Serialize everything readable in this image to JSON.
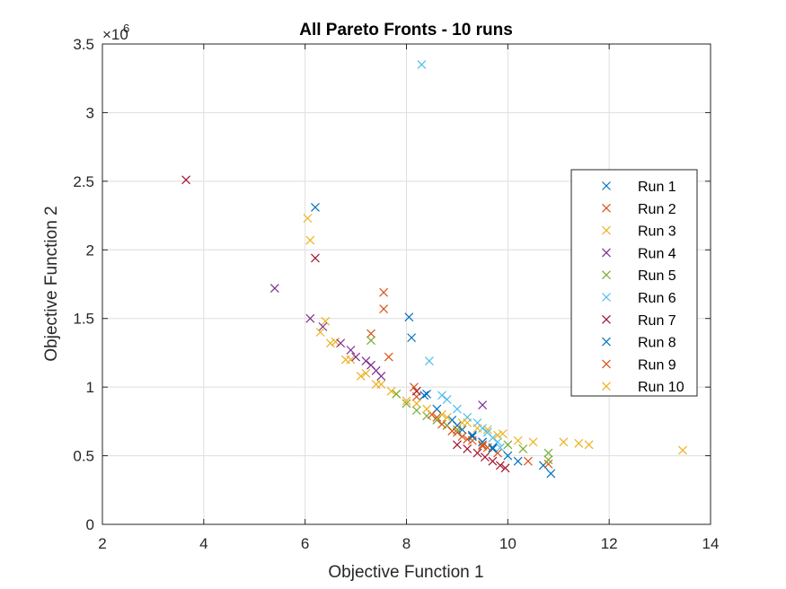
{
  "chart_data": {
    "type": "scatter",
    "title": "All Pareto Fronts - 10 runs",
    "xlabel": "Objective Function 1",
    "ylabel": "Objective Function 2",
    "xlim": [
      2,
      14
    ],
    "ylim": [
      0,
      3.5
    ],
    "y_exponent_label": "×10",
    "y_exponent_power": "6",
    "xticks": [
      "2",
      "4",
      "6",
      "8",
      "10",
      "12",
      "14"
    ],
    "yticks": [
      "0",
      "0.5",
      "1",
      "1.5",
      "2",
      "2.5",
      "3",
      "3.5"
    ],
    "grid": true,
    "legend_position": "east",
    "marker": "x",
    "series": [
      {
        "name": "Run 1",
        "color": "#0072BD",
        "points": [
          [
            6.2,
            2.31
          ],
          [
            8.05,
            1.51
          ],
          [
            8.1,
            1.36
          ],
          [
            8.4,
            0.95
          ],
          [
            9.0,
            0.72
          ],
          [
            9.3,
            0.65
          ],
          [
            9.5,
            0.6
          ],
          [
            9.7,
            0.55
          ],
          [
            10.2,
            0.46
          ],
          [
            10.7,
            0.43
          ],
          [
            10.85,
            0.37
          ]
        ]
      },
      {
        "name": "Run 2",
        "color": "#D95319",
        "points": [
          [
            7.55,
            1.69
          ],
          [
            7.55,
            1.57
          ],
          [
            7.3,
            1.39
          ],
          [
            7.65,
            1.22
          ],
          [
            8.2,
            0.93
          ],
          [
            8.6,
            0.78
          ],
          [
            8.8,
            0.72
          ],
          [
            9.0,
            0.67
          ],
          [
            9.2,
            0.62
          ],
          [
            9.5,
            0.57
          ],
          [
            9.8,
            0.52
          ],
          [
            10.4,
            0.46
          ],
          [
            10.8,
            0.44
          ]
        ]
      },
      {
        "name": "Run 3",
        "color": "#EDB120",
        "points": [
          [
            6.05,
            2.23
          ],
          [
            6.1,
            2.07
          ],
          [
            6.4,
            1.48
          ],
          [
            6.6,
            1.33
          ],
          [
            6.9,
            1.2
          ],
          [
            7.2,
            1.1
          ],
          [
            7.5,
            1.02
          ],
          [
            7.8,
            0.95
          ],
          [
            8.2,
            0.88
          ],
          [
            8.7,
            0.8
          ],
          [
            9.2,
            0.74
          ],
          [
            9.6,
            0.69
          ],
          [
            9.9,
            0.66
          ],
          [
            10.2,
            0.61
          ],
          [
            10.5,
            0.6
          ],
          [
            11.1,
            0.6
          ],
          [
            11.4,
            0.59
          ],
          [
            11.6,
            0.58
          ],
          [
            13.45,
            0.54
          ]
        ]
      },
      {
        "name": "Run 4",
        "color": "#7E2F8E",
        "points": [
          [
            5.4,
            1.72
          ],
          [
            6.1,
            1.5
          ],
          [
            6.35,
            1.44
          ],
          [
            6.7,
            1.32
          ],
          [
            6.9,
            1.27
          ],
          [
            7.0,
            1.22
          ],
          [
            7.2,
            1.19
          ],
          [
            7.3,
            1.16
          ],
          [
            7.4,
            1.12
          ],
          [
            7.5,
            1.08
          ],
          [
            9.5,
            0.87
          ]
        ]
      },
      {
        "name": "Run 5",
        "color": "#77AC30",
        "points": [
          [
            7.3,
            1.34
          ],
          [
            7.8,
            0.95
          ],
          [
            8.0,
            0.88
          ],
          [
            8.2,
            0.83
          ],
          [
            8.4,
            0.79
          ],
          [
            8.6,
            0.76
          ],
          [
            8.8,
            0.72
          ],
          [
            9.0,
            0.69
          ],
          [
            10.0,
            0.58
          ],
          [
            10.3,
            0.55
          ],
          [
            10.8,
            0.52
          ],
          [
            10.8,
            0.47
          ]
        ]
      },
      {
        "name": "Run 6",
        "color": "#4DBEEE",
        "points": [
          [
            8.3,
            3.35
          ],
          [
            8.45,
            1.19
          ],
          [
            8.7,
            0.94
          ],
          [
            8.8,
            0.91
          ],
          [
            9.0,
            0.84
          ],
          [
            9.2,
            0.78
          ],
          [
            9.4,
            0.74
          ],
          [
            9.5,
            0.7
          ],
          [
            9.6,
            0.67
          ],
          [
            9.7,
            0.63
          ],
          [
            9.8,
            0.6
          ],
          [
            9.85,
            0.56
          ]
        ]
      },
      {
        "name": "Run 7",
        "color": "#A2142F",
        "points": [
          [
            3.65,
            2.51
          ],
          [
            6.2,
            1.94
          ],
          [
            8.2,
            0.97
          ],
          [
            9.0,
            0.58
          ],
          [
            9.2,
            0.55
          ],
          [
            9.4,
            0.52
          ],
          [
            9.55,
            0.49
          ],
          [
            9.7,
            0.46
          ],
          [
            9.85,
            0.43
          ],
          [
            9.95,
            0.41
          ]
        ]
      },
      {
        "name": "Run 8",
        "color": "#0072BD",
        "points": [
          [
            8.35,
            0.94
          ],
          [
            8.6,
            0.84
          ],
          [
            8.9,
            0.76
          ],
          [
            9.1,
            0.69
          ],
          [
            9.3,
            0.64
          ],
          [
            9.5,
            0.6
          ],
          [
            9.7,
            0.56
          ],
          [
            10.0,
            0.5
          ]
        ]
      },
      {
        "name": "Run 9",
        "color": "#D95319",
        "points": [
          [
            8.15,
            1.0
          ],
          [
            8.5,
            0.8
          ],
          [
            8.7,
            0.73
          ],
          [
            8.9,
            0.68
          ],
          [
            9.1,
            0.64
          ],
          [
            9.3,
            0.61
          ],
          [
            9.5,
            0.58
          ],
          [
            9.6,
            0.56
          ]
        ]
      },
      {
        "name": "Run 10",
        "color": "#EDB120",
        "points": [
          [
            6.3,
            1.4
          ],
          [
            6.5,
            1.32
          ],
          [
            6.8,
            1.2
          ],
          [
            7.1,
            1.08
          ],
          [
            7.4,
            1.02
          ],
          [
            7.7,
            0.97
          ],
          [
            8.0,
            0.9
          ],
          [
            8.4,
            0.84
          ],
          [
            8.8,
            0.78
          ],
          [
            9.1,
            0.74
          ],
          [
            9.4,
            0.7
          ],
          [
            9.8,
            0.65
          ]
        ]
      }
    ]
  }
}
